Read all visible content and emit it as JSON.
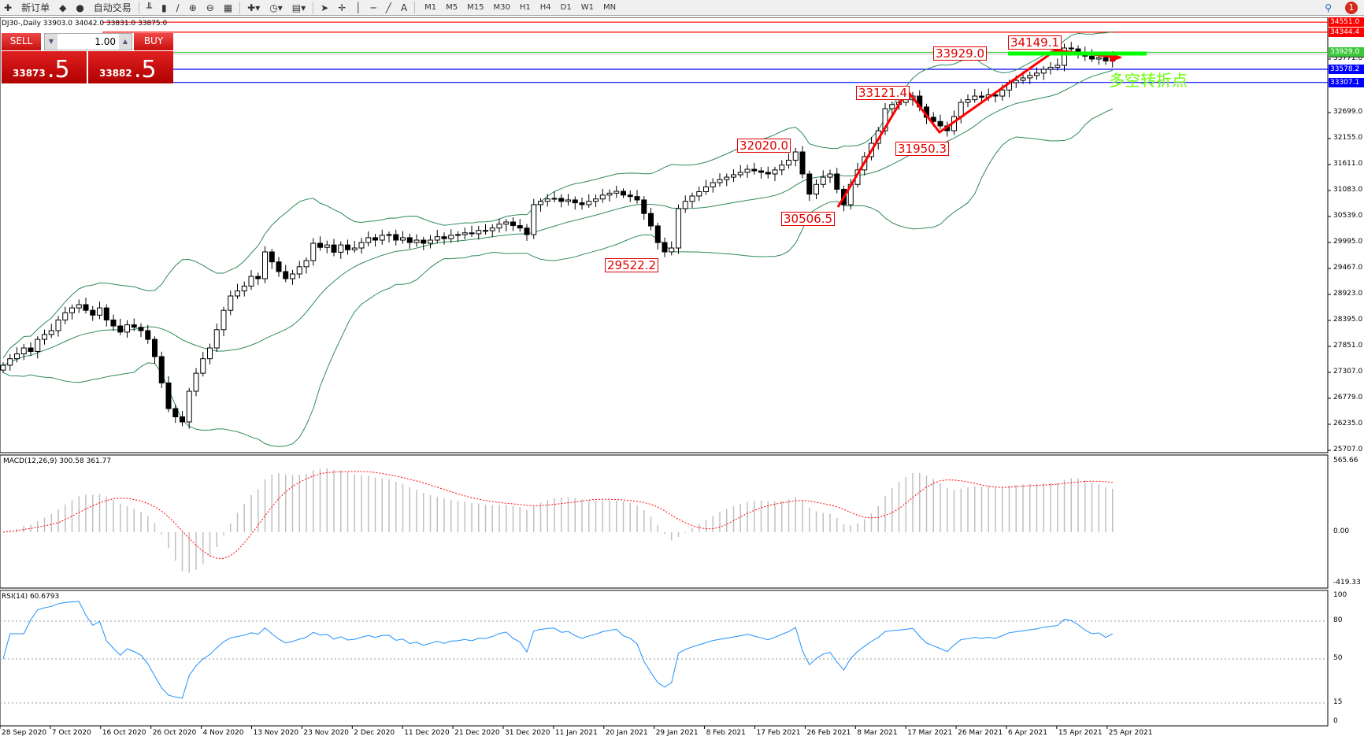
{
  "toolbar": {
    "new_order": "新订单",
    "auto_trading": "自动交易",
    "timeframes": [
      "M1",
      "M5",
      "M15",
      "M30",
      "H1",
      "H4",
      "D1",
      "W1",
      "MN"
    ],
    "notification_count": "1"
  },
  "chart": {
    "header": "DJ30-,Daily  33903.0 34042.0 33831.0 33875.0",
    "trade_panel": {
      "sell": "SELL",
      "buy": "BUY",
      "quantity": "1.00",
      "sell_price_main": "33873",
      "sell_price_frac": ".5",
      "buy_price_main": "33882",
      "buy_price_frac": ".5"
    },
    "annotation_text": "多空转折点",
    "price_labels": [
      {
        "text": "33929.0",
        "price": 33929.0
      },
      {
        "text": "34149.1",
        "price": 34149.1
      },
      {
        "text": "33121.4",
        "price": 33121.4
      },
      {
        "text": "32020.0",
        "price": 32020.0
      },
      {
        "text": "31950.3",
        "price": 31950.3
      },
      {
        "text": "30506.5",
        "price": 30506.5
      },
      {
        "text": "29522.2",
        "price": 29522.2
      }
    ],
    "hlines": [
      {
        "price": 34551.0,
        "text": "34551.0",
        "color": "#ff0000"
      },
      {
        "price": 34344.4,
        "text": "34344.4",
        "color": "#ff0000"
      },
      {
        "price": 33929.0,
        "text": "33929.0",
        "color": "#3cc83c"
      },
      {
        "price": 33578.2,
        "text": "33578.2",
        "color": "#0000ff"
      },
      {
        "price": 33307.1,
        "text": "33307.1",
        "color": "#0000ff"
      }
    ],
    "y_ticks": [
      "33771.0",
      "32699.0",
      "32155.0",
      "31611.0",
      "31083.0",
      "30539.0",
      "29995.0",
      "29467.0",
      "28923.0",
      "28395.0",
      "27851.0",
      "27307.0",
      "26779.0",
      "26235.0",
      "25707.0"
    ],
    "dates": [
      "28 Sep 2020",
      "7 Oct 2020",
      "16 Oct 2020",
      "26 Oct 2020",
      "4 Nov 2020",
      "13 Nov 2020",
      "23 Nov 2020",
      "2 Dec 2020",
      "11 Dec 2020",
      "21 Dec 2020",
      "31 Dec 2020",
      "11 Jan 2021",
      "20 Jan 2021",
      "29 Jan 2021",
      "8 Feb 2021",
      "17 Feb 2021",
      "26 Feb 2021",
      "8 Mar 2021",
      "17 Mar 2021",
      "26 Mar 2021",
      "6 Apr 2021",
      "15 Apr 2021",
      "25 Apr 2021"
    ],
    "macd_label": "MACD(12,26,9) 300.58 361.77",
    "macd_ticks": [
      "565.66",
      "0.00",
      "-419.33"
    ],
    "rsi_label": "RSI(14) 60.6793",
    "rsi_ticks": [
      "100",
      "80",
      "50",
      "15",
      "0"
    ],
    "colors": {
      "bull": "#ffffff",
      "bear": "#000000",
      "bands": "#2e8b57",
      "macd_hist": "#c0c0c0",
      "macd_signal": "#ff0000",
      "rsi": "#1e90ff",
      "trend": "#ff0000",
      "support": "#00ff00"
    }
  },
  "chart_data": {
    "type": "candlestick",
    "symbol": "DJ30-",
    "timeframe": "Daily",
    "closes": [
      27465,
      27600,
      27700,
      27822,
      27750,
      28000,
      28100,
      28180,
      28400,
      28550,
      28650,
      28717,
      28600,
      28500,
      28650,
      28400,
      28277,
      28150,
      28300,
      28250,
      28180,
      28000,
      27644,
      27100,
      26570,
      26400,
      26294,
      26928,
      27300,
      27600,
      27822,
      28200,
      28600,
      28896,
      29000,
      29100,
      29300,
      29253,
      29806,
      29600,
      29400,
      29253,
      29350,
      29500,
      29627,
      29985,
      29900,
      29950,
      29800,
      29950,
      29850,
      29887,
      30000,
      30100,
      30050,
      30150,
      30164,
      30050,
      30100,
      30000,
      30050,
      29985,
      30050,
      30120,
      30080,
      30150,
      30164,
      30200,
      30180,
      30250,
      30245,
      30300,
      30380,
      30424,
      30350,
      30300,
      30164,
      30782,
      30850,
      30900,
      30912,
      30850,
      30880,
      30820,
      30782,
      30850,
      30900,
      30980,
      31020,
      31058,
      30980,
      30950,
      30880,
      30600,
      30343,
      30000,
      29806,
      29887,
      30700,
      30850,
      30961,
      31050,
      31150,
      31237,
      31300,
      31350,
      31400,
      31450,
      31513,
      31480,
      31450,
      31416,
      31500,
      31600,
      31700,
      31871,
      31416,
      31000,
      31200,
      31350,
      31416,
      31100,
      30782,
      31200,
      31500,
      31774,
      32050,
      32310,
      32765,
      32850,
      32895,
      32950,
      33025,
      32800,
      32587,
      32500,
      32408,
      32310,
      32600,
      32895,
      32950,
      33025,
      33000,
      33050,
      33025,
      33150,
      33302,
      33350,
      33400,
      33450,
      33500,
      33578,
      33620,
      33660,
      34018,
      34000,
      33936,
      33850,
      33790,
      33820,
      33750,
      33875
    ],
    "trend_path_prices": [
      30506.5,
      33121.4,
      31950.3,
      34149.1,
      33929.0
    ],
    "ylim": [
      25707,
      34551
    ]
  }
}
